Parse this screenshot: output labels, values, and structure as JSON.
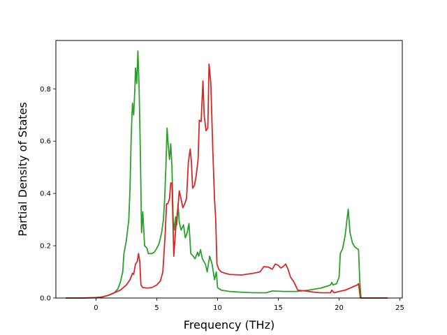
{
  "chart_data": {
    "type": "line",
    "xlabel": "Frequency (THz)",
    "ylabel": "Partial Density of States",
    "xlim": [
      -3.3,
      25.2
    ],
    "ylim": [
      0,
      0.985
    ],
    "x_ticks": [
      0,
      5,
      10,
      15,
      20,
      25
    ],
    "x_tick_labels": [
      "0",
      "5",
      "10",
      "15",
      "20",
      "25"
    ],
    "y_ticks": [
      0.0,
      0.2,
      0.4,
      0.6,
      0.8
    ],
    "y_tick_labels": [
      "0.0",
      "0.2",
      "0.4",
      "0.6",
      "0.8"
    ],
    "grid": false,
    "legend": "none",
    "series": [
      {
        "color": "#2ca02c",
        "points": [
          [
            -2.5,
            0.0
          ],
          [
            -1.0,
            0.0
          ],
          [
            0.0,
            0.002
          ],
          [
            0.5,
            0.004
          ],
          [
            1.0,
            0.01
          ],
          [
            1.5,
            0.02
          ],
          [
            1.8,
            0.035
          ],
          [
            2.0,
            0.06
          ],
          [
            2.2,
            0.1
          ],
          [
            2.3,
            0.17
          ],
          [
            2.5,
            0.22
          ],
          [
            2.7,
            0.3
          ],
          [
            2.8,
            0.42
          ],
          [
            2.9,
            0.62
          ],
          [
            3.0,
            0.745
          ],
          [
            3.1,
            0.7
          ],
          [
            3.2,
            0.8
          ],
          [
            3.25,
            0.88
          ],
          [
            3.35,
            0.82
          ],
          [
            3.45,
            0.945
          ],
          [
            3.55,
            0.8
          ],
          [
            3.65,
            0.56
          ],
          [
            3.75,
            0.25
          ],
          [
            3.85,
            0.33
          ],
          [
            4.0,
            0.2
          ],
          [
            4.2,
            0.19
          ],
          [
            4.3,
            0.17
          ],
          [
            4.6,
            0.17
          ],
          [
            4.8,
            0.175
          ],
          [
            5.0,
            0.19
          ],
          [
            5.2,
            0.21
          ],
          [
            5.4,
            0.25
          ],
          [
            5.55,
            0.3
          ],
          [
            5.65,
            0.38
          ],
          [
            5.75,
            0.5
          ],
          [
            5.85,
            0.65
          ],
          [
            5.95,
            0.58
          ],
          [
            6.05,
            0.53
          ],
          [
            6.15,
            0.59
          ],
          [
            6.25,
            0.5
          ],
          [
            6.35,
            0.3
          ],
          [
            6.45,
            0.26
          ],
          [
            6.55,
            0.31
          ],
          [
            6.65,
            0.28
          ],
          [
            6.75,
            0.36
          ],
          [
            6.85,
            0.29
          ],
          [
            7.0,
            0.26
          ],
          [
            7.2,
            0.28
          ],
          [
            7.35,
            0.23
          ],
          [
            7.5,
            0.25
          ],
          [
            7.65,
            0.285
          ],
          [
            7.8,
            0.17
          ],
          [
            8.0,
            0.16
          ],
          [
            8.15,
            0.15
          ],
          [
            8.35,
            0.175
          ],
          [
            8.45,
            0.16
          ],
          [
            8.6,
            0.185
          ],
          [
            8.75,
            0.15
          ],
          [
            9.0,
            0.13
          ],
          [
            9.15,
            0.1
          ],
          [
            9.35,
            0.16
          ],
          [
            9.55,
            0.13
          ],
          [
            9.75,
            0.07
          ],
          [
            9.9,
            0.1
          ],
          [
            10.0,
            0.04
          ],
          [
            10.3,
            0.03
          ],
          [
            11.0,
            0.025
          ],
          [
            12.0,
            0.022
          ],
          [
            13.0,
            0.02
          ],
          [
            14.0,
            0.02
          ],
          [
            14.5,
            0.027
          ],
          [
            15.5,
            0.025
          ],
          [
            16.5,
            0.025
          ],
          [
            17.5,
            0.03
          ],
          [
            18.5,
            0.038
          ],
          [
            19.0,
            0.045
          ],
          [
            19.3,
            0.05
          ],
          [
            19.4,
            0.06
          ],
          [
            19.5,
            0.05
          ],
          [
            19.8,
            0.055
          ],
          [
            20.0,
            0.08
          ],
          [
            20.1,
            0.17
          ],
          [
            20.3,
            0.19
          ],
          [
            20.5,
            0.24
          ],
          [
            20.6,
            0.28
          ],
          [
            20.75,
            0.34
          ],
          [
            20.9,
            0.25
          ],
          [
            21.1,
            0.21
          ],
          [
            21.3,
            0.195
          ],
          [
            21.6,
            0.185
          ],
          [
            21.7,
            0.065
          ],
          [
            21.8,
            0.0
          ],
          [
            24.0,
            0.0
          ]
        ]
      },
      {
        "color": "#d62728",
        "points": [
          [
            -2.5,
            0.0
          ],
          [
            -1.0,
            0.0
          ],
          [
            0.0,
            0.001
          ],
          [
            0.5,
            0.004
          ],
          [
            1.0,
            0.01
          ],
          [
            1.5,
            0.02
          ],
          [
            2.0,
            0.03
          ],
          [
            2.5,
            0.05
          ],
          [
            2.8,
            0.07
          ],
          [
            3.0,
            0.095
          ],
          [
            3.1,
            0.09
          ],
          [
            3.25,
            0.13
          ],
          [
            3.4,
            0.14
          ],
          [
            3.5,
            0.17
          ],
          [
            3.6,
            0.14
          ],
          [
            3.7,
            0.05
          ],
          [
            3.85,
            0.04
          ],
          [
            4.2,
            0.038
          ],
          [
            4.6,
            0.04
          ],
          [
            5.0,
            0.05
          ],
          [
            5.3,
            0.065
          ],
          [
            5.5,
            0.1
          ],
          [
            5.7,
            0.25
          ],
          [
            5.8,
            0.36
          ],
          [
            5.9,
            0.36
          ],
          [
            6.05,
            0.38
          ],
          [
            6.15,
            0.44
          ],
          [
            6.25,
            0.44
          ],
          [
            6.4,
            0.16
          ],
          [
            6.55,
            0.26
          ],
          [
            6.65,
            0.31
          ],
          [
            6.75,
            0.35
          ],
          [
            6.85,
            0.41
          ],
          [
            6.95,
            0.39
          ],
          [
            7.15,
            0.345
          ],
          [
            7.3,
            0.36
          ],
          [
            7.45,
            0.38
          ],
          [
            7.6,
            0.52
          ],
          [
            7.75,
            0.57
          ],
          [
            7.85,
            0.52
          ],
          [
            7.95,
            0.42
          ],
          [
            8.1,
            0.43
          ],
          [
            8.25,
            0.47
          ],
          [
            8.4,
            0.53
          ],
          [
            8.5,
            0.68
          ],
          [
            8.65,
            0.675
          ],
          [
            8.8,
            0.83
          ],
          [
            8.9,
            0.7
          ],
          [
            9.05,
            0.64
          ],
          [
            9.2,
            0.65
          ],
          [
            9.3,
            0.895
          ],
          [
            9.45,
            0.82
          ],
          [
            9.6,
            0.58
          ],
          [
            9.75,
            0.38
          ],
          [
            9.85,
            0.3
          ],
          [
            9.95,
            0.13
          ],
          [
            10.1,
            0.11
          ],
          [
            10.3,
            0.1
          ],
          [
            10.6,
            0.095
          ],
          [
            11.0,
            0.09
          ],
          [
            12.0,
            0.088
          ],
          [
            13.0,
            0.095
          ],
          [
            13.5,
            0.1
          ],
          [
            13.8,
            0.12
          ],
          [
            14.2,
            0.118
          ],
          [
            14.5,
            0.11
          ],
          [
            14.75,
            0.13
          ],
          [
            15.0,
            0.125
          ],
          [
            15.2,
            0.115
          ],
          [
            15.4,
            0.12
          ],
          [
            15.6,
            0.13
          ],
          [
            15.8,
            0.11
          ],
          [
            16.0,
            0.08
          ],
          [
            16.3,
            0.06
          ],
          [
            16.6,
            0.03
          ],
          [
            17.0,
            0.028
          ],
          [
            17.5,
            0.025
          ],
          [
            18.0,
            0.022
          ],
          [
            18.5,
            0.02
          ],
          [
            19.0,
            0.02
          ],
          [
            19.3,
            0.02
          ],
          [
            19.4,
            0.03
          ],
          [
            19.6,
            0.02
          ],
          [
            20.0,
            0.025
          ],
          [
            20.5,
            0.03
          ],
          [
            21.0,
            0.04
          ],
          [
            21.5,
            0.05
          ],
          [
            21.6,
            0.055
          ],
          [
            21.75,
            0.0
          ],
          [
            24.0,
            0.0
          ]
        ]
      }
    ]
  }
}
